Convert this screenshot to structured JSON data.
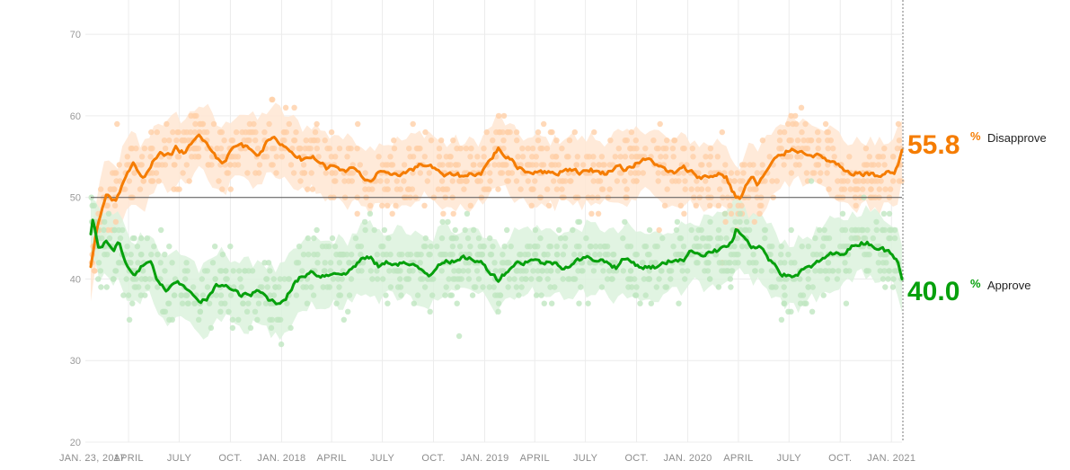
{
  "chart_data": {
    "type": "line",
    "x_start": "2017-01-23",
    "x_end": "2021-01-20",
    "ylim": [
      20,
      72
    ],
    "yticks": [
      20,
      30,
      40,
      50,
      60,
      70
    ],
    "reference_line": 50,
    "x_ticks": [
      {
        "label": "JAN. 23, 2017",
        "date": "2017-01-23"
      },
      {
        "label": "APRIL",
        "date": "2017-04-01"
      },
      {
        "label": "JULY",
        "date": "2017-07-01"
      },
      {
        "label": "OCT.",
        "date": "2017-10-01"
      },
      {
        "label": "JAN. 2018",
        "date": "2018-01-01"
      },
      {
        "label": "APRIL",
        "date": "2018-04-01"
      },
      {
        "label": "JULY",
        "date": "2018-07-01"
      },
      {
        "label": "OCT.",
        "date": "2018-10-01"
      },
      {
        "label": "JAN. 2019",
        "date": "2019-01-01"
      },
      {
        "label": "APRIL",
        "date": "2019-04-01"
      },
      {
        "label": "JULY",
        "date": "2019-07-01"
      },
      {
        "label": "OCT.",
        "date": "2019-10-01"
      },
      {
        "label": "JAN. 2020",
        "date": "2020-01-01"
      },
      {
        "label": "APRIL",
        "date": "2020-04-01"
      },
      {
        "label": "JULY",
        "date": "2020-07-01"
      },
      {
        "label": "OCT.",
        "date": "2020-10-01"
      },
      {
        "label": "JAN. 2021",
        "date": "2021-01-01"
      }
    ],
    "series": [
      {
        "name": "Disapprove",
        "color": "#f57c00",
        "dot_color": "#ffcfa8",
        "band_color": "#ffe6d2",
        "final_value": "55.8",
        "points": [
          [
            "2017-01-23",
            41.5
          ],
          [
            "2017-02-05",
            47
          ],
          [
            "2017-02-20",
            50.5
          ],
          [
            "2017-03-10",
            49.5
          ],
          [
            "2017-03-25",
            52.5
          ],
          [
            "2017-04-10",
            54
          ],
          [
            "2017-04-25",
            52
          ],
          [
            "2017-05-10",
            54
          ],
          [
            "2017-05-25",
            55.5
          ],
          [
            "2017-06-10",
            55
          ],
          [
            "2017-06-25",
            56
          ],
          [
            "2017-07-10",
            55.5
          ],
          [
            "2017-07-25",
            56.5
          ],
          [
            "2017-08-05",
            57.5
          ],
          [
            "2017-08-20",
            57
          ],
          [
            "2017-09-05",
            55
          ],
          [
            "2017-09-20",
            54.5
          ],
          [
            "2017-10-05",
            56
          ],
          [
            "2017-10-20",
            56.5
          ],
          [
            "2017-11-05",
            56
          ],
          [
            "2017-11-20",
            55.5
          ],
          [
            "2017-12-10",
            57
          ],
          [
            "2017-12-25",
            57
          ],
          [
            "2018-01-10",
            56
          ],
          [
            "2018-01-25",
            55.5
          ],
          [
            "2018-02-10",
            54.5
          ],
          [
            "2018-02-25",
            55
          ],
          [
            "2018-03-10",
            54.5
          ],
          [
            "2018-03-25",
            53.5
          ],
          [
            "2018-04-10",
            54
          ],
          [
            "2018-04-25",
            53
          ],
          [
            "2018-05-10",
            53.5
          ],
          [
            "2018-05-25",
            52.5
          ],
          [
            "2018-06-10",
            52
          ],
          [
            "2018-06-25",
            53
          ],
          [
            "2018-07-10",
            52.5
          ],
          [
            "2018-07-25",
            53
          ],
          [
            "2018-08-10",
            53
          ],
          [
            "2018-08-25",
            53.5
          ],
          [
            "2018-09-10",
            54
          ],
          [
            "2018-09-25",
            54
          ],
          [
            "2018-10-10",
            53
          ],
          [
            "2018-10-25",
            52.5
          ],
          [
            "2018-11-10",
            53
          ],
          [
            "2018-11-25",
            52.5
          ],
          [
            "2018-12-10",
            53
          ],
          [
            "2018-12-25",
            53
          ],
          [
            "2019-01-10",
            54.5
          ],
          [
            "2019-01-25",
            56
          ],
          [
            "2019-02-10",
            55
          ],
          [
            "2019-02-25",
            54
          ],
          [
            "2019-03-10",
            53.5
          ],
          [
            "2019-03-25",
            53
          ],
          [
            "2019-04-10",
            53.5
          ],
          [
            "2019-04-25",
            53
          ],
          [
            "2019-05-10",
            53
          ],
          [
            "2019-05-25",
            53.5
          ],
          [
            "2019-06-10",
            53.5
          ],
          [
            "2019-06-25",
            53
          ],
          [
            "2019-07-10",
            53.5
          ],
          [
            "2019-07-25",
            53
          ],
          [
            "2019-08-10",
            53
          ],
          [
            "2019-08-25",
            54
          ],
          [
            "2019-09-10",
            53.5
          ],
          [
            "2019-09-25",
            54
          ],
          [
            "2019-10-10",
            54.5
          ],
          [
            "2019-10-25",
            54.5
          ],
          [
            "2019-11-10",
            54
          ],
          [
            "2019-11-25",
            53
          ],
          [
            "2019-12-10",
            53
          ],
          [
            "2019-12-25",
            53.5
          ],
          [
            "2020-01-10",
            53
          ],
          [
            "2020-01-25",
            52.5
          ],
          [
            "2020-02-10",
            52.5
          ],
          [
            "2020-02-25",
            53
          ],
          [
            "2020-03-10",
            52.5
          ],
          [
            "2020-03-20",
            51
          ],
          [
            "2020-03-28",
            50
          ],
          [
            "2020-04-05",
            50
          ],
          [
            "2020-04-15",
            51.5
          ],
          [
            "2020-04-25",
            52.5
          ],
          [
            "2020-05-05",
            51.5
          ],
          [
            "2020-05-15",
            52.5
          ],
          [
            "2020-05-25",
            53.5
          ],
          [
            "2020-06-05",
            54.5
          ],
          [
            "2020-06-15",
            55
          ],
          [
            "2020-06-25",
            55.5
          ],
          [
            "2020-07-05",
            56
          ],
          [
            "2020-07-15",
            56
          ],
          [
            "2020-07-25",
            55.5
          ],
          [
            "2020-08-10",
            55.5
          ],
          [
            "2020-08-25",
            55
          ],
          [
            "2020-09-10",
            54.5
          ],
          [
            "2020-09-25",
            54
          ],
          [
            "2020-10-10",
            53
          ],
          [
            "2020-10-25",
            52.5
          ],
          [
            "2020-11-05",
            53
          ],
          [
            "2020-11-20",
            53
          ],
          [
            "2020-12-05",
            52.5
          ],
          [
            "2020-12-20",
            53
          ],
          [
            "2021-01-05",
            53
          ],
          [
            "2021-01-13",
            54
          ],
          [
            "2021-01-20",
            55.8
          ]
        ]
      },
      {
        "name": "Approve",
        "color": "#06a00c",
        "dot_color": "#bfe6c1",
        "band_color": "#dcf2dd",
        "final_value": "40.0",
        "points": [
          [
            "2017-01-23",
            45.5
          ],
          [
            "2017-01-27",
            47.5
          ],
          [
            "2017-02-05",
            44
          ],
          [
            "2017-02-20",
            44.5
          ],
          [
            "2017-03-05",
            43.5
          ],
          [
            "2017-03-15",
            44.5
          ],
          [
            "2017-03-25",
            42
          ],
          [
            "2017-04-10",
            40.5
          ],
          [
            "2017-04-25",
            41.5
          ],
          [
            "2017-05-10",
            42
          ],
          [
            "2017-05-25",
            39.5
          ],
          [
            "2017-06-10",
            38.5
          ],
          [
            "2017-06-25",
            39.5
          ],
          [
            "2017-07-10",
            39
          ],
          [
            "2017-07-25",
            38.5
          ],
          [
            "2017-08-05",
            37
          ],
          [
            "2017-08-20",
            37.5
          ],
          [
            "2017-09-05",
            39
          ],
          [
            "2017-09-20",
            39.5
          ],
          [
            "2017-10-05",
            38.5
          ],
          [
            "2017-10-20",
            38
          ],
          [
            "2017-11-05",
            38
          ],
          [
            "2017-11-20",
            38.5
          ],
          [
            "2017-12-10",
            37.5
          ],
          [
            "2017-12-25",
            37
          ],
          [
            "2018-01-10",
            38
          ],
          [
            "2018-01-25",
            39.5
          ],
          [
            "2018-02-10",
            40.5
          ],
          [
            "2018-02-25",
            41
          ],
          [
            "2018-03-10",
            40.5
          ],
          [
            "2018-03-25",
            40.5
          ],
          [
            "2018-04-10",
            41
          ],
          [
            "2018-04-25",
            40.5
          ],
          [
            "2018-05-10",
            41.5
          ],
          [
            "2018-05-25",
            42.5
          ],
          [
            "2018-06-10",
            42.5
          ],
          [
            "2018-06-25",
            41.5
          ],
          [
            "2018-07-10",
            42
          ],
          [
            "2018-07-25",
            42
          ],
          [
            "2018-08-10",
            42
          ],
          [
            "2018-08-25",
            41.5
          ],
          [
            "2018-09-10",
            41
          ],
          [
            "2018-09-25",
            40.5
          ],
          [
            "2018-10-10",
            42
          ],
          [
            "2018-10-25",
            42.5
          ],
          [
            "2018-11-10",
            42
          ],
          [
            "2018-11-25",
            42.5
          ],
          [
            "2018-12-10",
            42.5
          ],
          [
            "2018-12-25",
            42
          ],
          [
            "2019-01-10",
            41
          ],
          [
            "2019-01-25",
            40
          ],
          [
            "2019-02-10",
            41
          ],
          [
            "2019-02-25",
            42
          ],
          [
            "2019-03-10",
            42
          ],
          [
            "2019-03-25",
            42.5
          ],
          [
            "2019-04-10",
            42
          ],
          [
            "2019-04-25",
            42
          ],
          [
            "2019-05-10",
            42
          ],
          [
            "2019-05-25",
            41.5
          ],
          [
            "2019-06-10",
            42
          ],
          [
            "2019-06-25",
            42.5
          ],
          [
            "2019-07-10",
            42.5
          ],
          [
            "2019-07-25",
            42.5
          ],
          [
            "2019-08-10",
            42
          ],
          [
            "2019-08-25",
            41.5
          ],
          [
            "2019-09-10",
            42.5
          ],
          [
            "2019-09-25",
            42
          ],
          [
            "2019-10-10",
            41.5
          ],
          [
            "2019-10-25",
            41.5
          ],
          [
            "2019-11-10",
            41.5
          ],
          [
            "2019-11-25",
            42
          ],
          [
            "2019-12-10",
            42.5
          ],
          [
            "2019-12-25",
            42.5
          ],
          [
            "2020-01-10",
            43.5
          ],
          [
            "2020-01-25",
            43
          ],
          [
            "2020-02-10",
            43.5
          ],
          [
            "2020-02-25",
            43.5
          ],
          [
            "2020-03-10",
            44
          ],
          [
            "2020-03-20",
            44.5
          ],
          [
            "2020-03-28",
            46
          ],
          [
            "2020-04-05",
            45.5
          ],
          [
            "2020-04-15",
            44.5
          ],
          [
            "2020-04-25",
            43.5
          ],
          [
            "2020-05-05",
            44
          ],
          [
            "2020-05-15",
            43.5
          ],
          [
            "2020-05-25",
            42.5
          ],
          [
            "2020-06-05",
            42
          ],
          [
            "2020-06-15",
            41
          ],
          [
            "2020-06-25",
            40.5
          ],
          [
            "2020-07-05",
            40.5
          ],
          [
            "2020-07-15",
            40.5
          ],
          [
            "2020-07-25",
            41
          ],
          [
            "2020-08-10",
            41.5
          ],
          [
            "2020-08-25",
            42
          ],
          [
            "2020-09-10",
            43
          ],
          [
            "2020-09-25",
            43
          ],
          [
            "2020-10-10",
            43.5
          ],
          [
            "2020-10-25",
            44
          ],
          [
            "2020-11-05",
            44.5
          ],
          [
            "2020-11-20",
            44.5
          ],
          [
            "2020-12-05",
            44
          ],
          [
            "2020-12-20",
            43.5
          ],
          [
            "2021-01-05",
            43
          ],
          [
            "2021-01-13",
            42
          ],
          [
            "2021-01-20",
            40.0
          ]
        ]
      }
    ]
  }
}
